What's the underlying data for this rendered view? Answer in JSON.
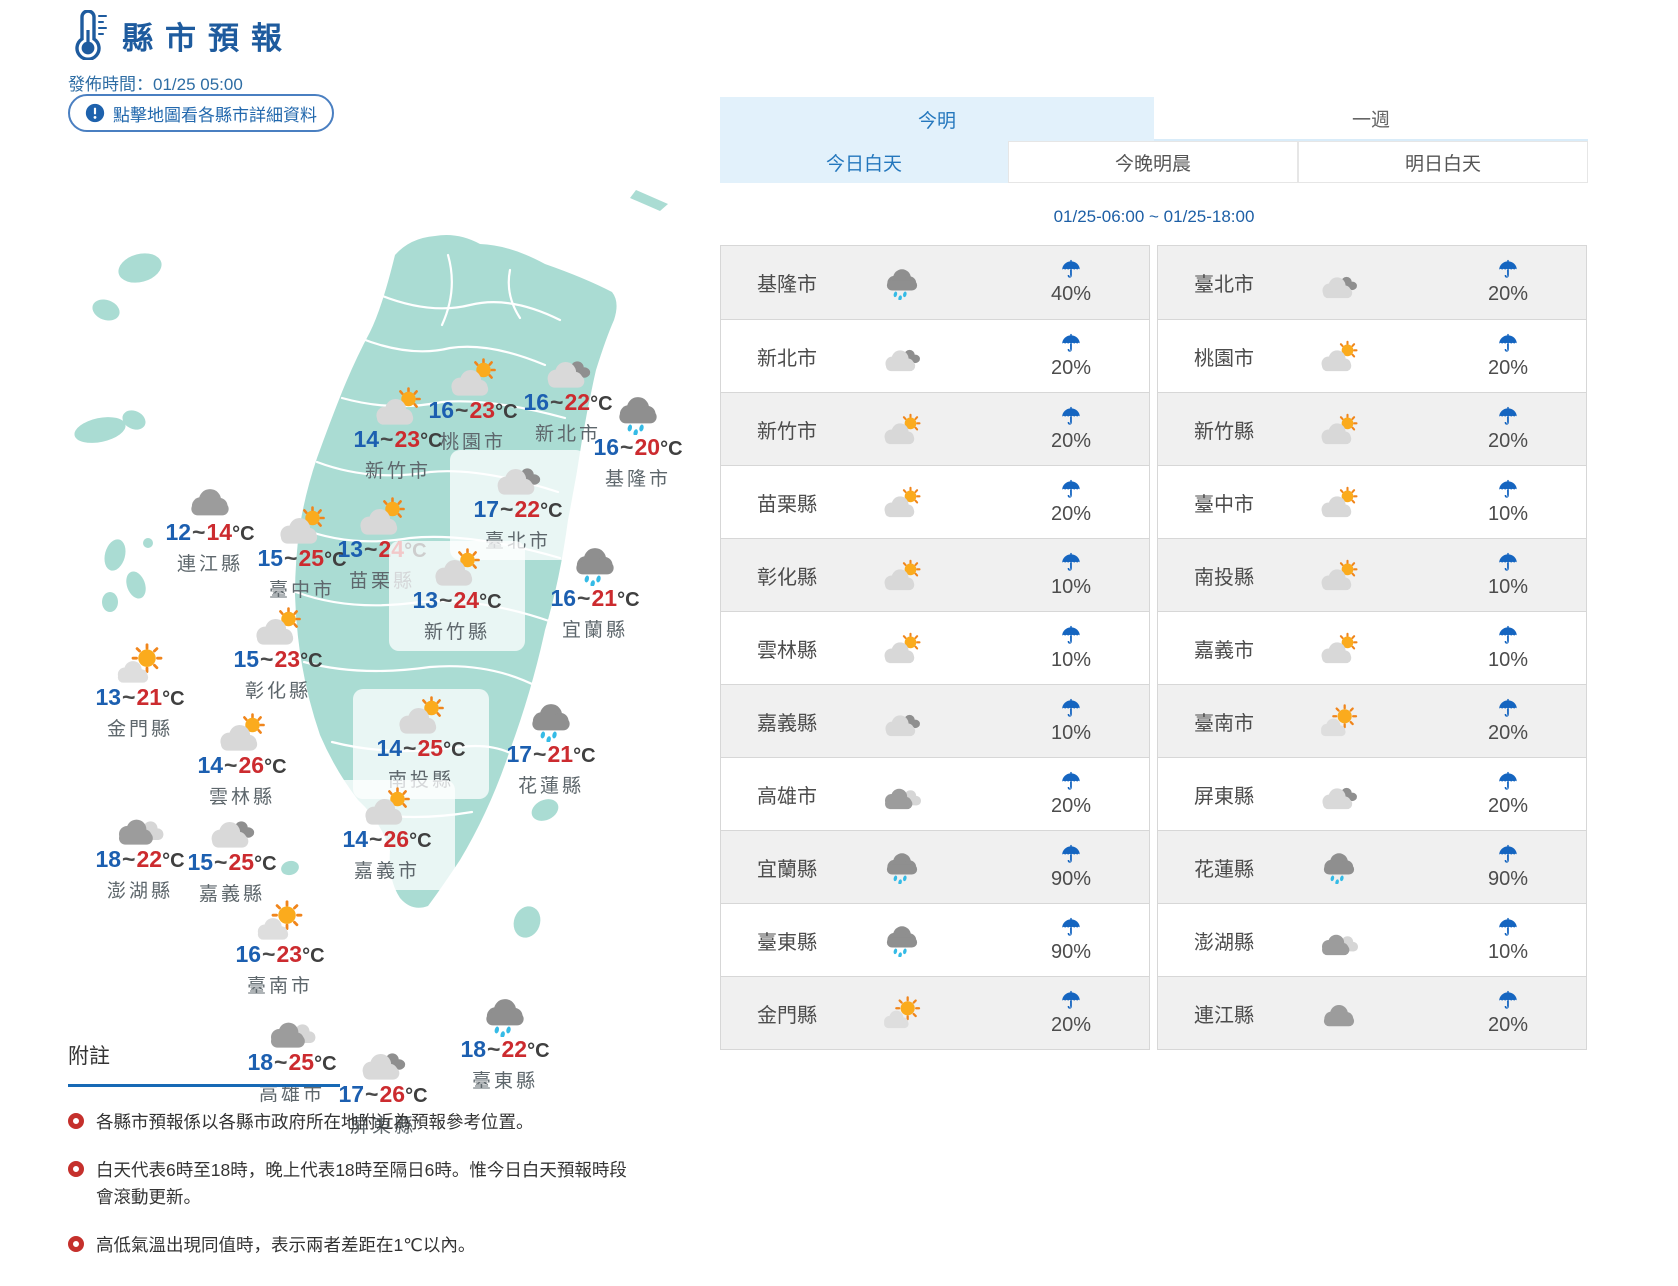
{
  "header": {
    "title": "縣市預報",
    "publish_time": "發佈時間：01/25 05:00",
    "map_hint": "點擊地圖看各縣市詳細資料"
  },
  "tabs": {
    "main": [
      {
        "label": "今明",
        "active": true
      },
      {
        "label": "一週",
        "active": false
      }
    ],
    "sub": [
      {
        "label": "今日白天",
        "active": true
      },
      {
        "label": "今晚明晨",
        "active": false
      },
      {
        "label": "明日白天",
        "active": false
      }
    ],
    "period": "01/25-06:00 ~ 01/25-18:00"
  },
  "map": {
    "tilde": "~",
    "unit": "°C",
    "labels": [
      {
        "name": "連江縣",
        "low": "12",
        "high": "14",
        "icon": "cloud"
      },
      {
        "name": "新竹市",
        "low": "14",
        "high": "23",
        "icon": "psunny"
      },
      {
        "name": "桃園市",
        "low": "16",
        "high": "23",
        "icon": "psunny"
      },
      {
        "name": "新北市",
        "low": "16",
        "high": "22",
        "icon": "cloudy"
      },
      {
        "name": "基隆市",
        "low": "16",
        "high": "20",
        "icon": "rain"
      },
      {
        "name": "臺北市",
        "low": "17",
        "high": "22",
        "icon": "cloudy"
      },
      {
        "name": "臺中市",
        "low": "15",
        "high": "25",
        "icon": "psunny"
      },
      {
        "name": "苗栗縣",
        "low": "13",
        "high": "24",
        "icon": "psunny"
      },
      {
        "name": "新竹縣",
        "low": "13",
        "high": "24",
        "icon": "psunny"
      },
      {
        "name": "宜蘭縣",
        "low": "16",
        "high": "21",
        "icon": "rain"
      },
      {
        "name": "彰化縣",
        "low": "15",
        "high": "23",
        "icon": "psunny"
      },
      {
        "name": "金門縣",
        "low": "13",
        "high": "21",
        "icon": "msunny"
      },
      {
        "name": "雲林縣",
        "low": "14",
        "high": "26",
        "icon": "psunny"
      },
      {
        "name": "南投縣",
        "low": "14",
        "high": "25",
        "icon": "psunny"
      },
      {
        "name": "花蓮縣",
        "low": "17",
        "high": "21",
        "icon": "rain"
      },
      {
        "name": "澎湖縣",
        "low": "18",
        "high": "22",
        "icon": "cloudy2"
      },
      {
        "name": "嘉義縣",
        "low": "15",
        "high": "25",
        "icon": "cloudy"
      },
      {
        "name": "嘉義市",
        "low": "14",
        "high": "26",
        "icon": "psunny"
      },
      {
        "name": "臺南市",
        "low": "16",
        "high": "23",
        "icon": "msunny"
      },
      {
        "name": "高雄市",
        "low": "18",
        "high": "25",
        "icon": "cloudy2"
      },
      {
        "name": "屏東縣",
        "low": "17",
        "high": "26",
        "icon": "cloudy"
      },
      {
        "name": "臺東縣",
        "low": "18",
        "high": "22",
        "icon": "rain"
      }
    ]
  },
  "table": {
    "rows": [
      [
        {
          "name": "基隆市",
          "icon": "rain",
          "pop": "40%"
        },
        {
          "name": "臺北市",
          "icon": "cloudy",
          "pop": "20%"
        }
      ],
      [
        {
          "name": "新北市",
          "icon": "cloudy",
          "pop": "20%"
        },
        {
          "name": "桃園市",
          "icon": "psunny",
          "pop": "20%"
        }
      ],
      [
        {
          "name": "新竹市",
          "icon": "psunny",
          "pop": "20%"
        },
        {
          "name": "新竹縣",
          "icon": "psunny",
          "pop": "20%"
        }
      ],
      [
        {
          "name": "苗栗縣",
          "icon": "psunny",
          "pop": "20%"
        },
        {
          "name": "臺中市",
          "icon": "psunny",
          "pop": "10%"
        }
      ],
      [
        {
          "name": "彰化縣",
          "icon": "psunny",
          "pop": "10%"
        },
        {
          "name": "南投縣",
          "icon": "psunny",
          "pop": "10%"
        }
      ],
      [
        {
          "name": "雲林縣",
          "icon": "psunny",
          "pop": "10%"
        },
        {
          "name": "嘉義市",
          "icon": "psunny",
          "pop": "10%"
        }
      ],
      [
        {
          "name": "嘉義縣",
          "icon": "cloudy",
          "pop": "10%"
        },
        {
          "name": "臺南市",
          "icon": "msunny",
          "pop": "20%"
        }
      ],
      [
        {
          "name": "高雄市",
          "icon": "cloudy2",
          "pop": "20%"
        },
        {
          "name": "屏東縣",
          "icon": "cloudy",
          "pop": "20%"
        }
      ],
      [
        {
          "name": "宜蘭縣",
          "icon": "rain",
          "pop": "90%"
        },
        {
          "name": "花蓮縣",
          "icon": "rain",
          "pop": "90%"
        }
      ],
      [
        {
          "name": "臺東縣",
          "icon": "rain",
          "pop": "90%"
        },
        {
          "name": "澎湖縣",
          "icon": "cloudy2",
          "pop": "10%"
        }
      ],
      [
        {
          "name": "金門縣",
          "icon": "msunny",
          "pop": "20%"
        },
        {
          "name": "連江縣",
          "icon": "cloud",
          "pop": "20%"
        }
      ]
    ]
  },
  "notes": {
    "heading": "附註",
    "items": [
      "各縣市預報係以各縣市政府所在地附近為預報參考位置。",
      "白天代表6時至18時，晚上代表18時至隔日6時。惟今日白天預報時段會滾動更新。",
      "高低氣溫出現同值時，表示兩者差距在1℃以內。"
    ]
  },
  "colors": {
    "accent_blue": "#1e5b9e",
    "tab_active_bg": "#e2f1fb",
    "tab_active_text": "#2477bd",
    "temp_low": "#1c5fb0",
    "temp_high": "#cc2b2f",
    "umbrella_blue": "#1565c0",
    "map_land": "#aadcd3",
    "row_stripe": "#f0f0f0",
    "note_bullet": "#c5302c"
  }
}
